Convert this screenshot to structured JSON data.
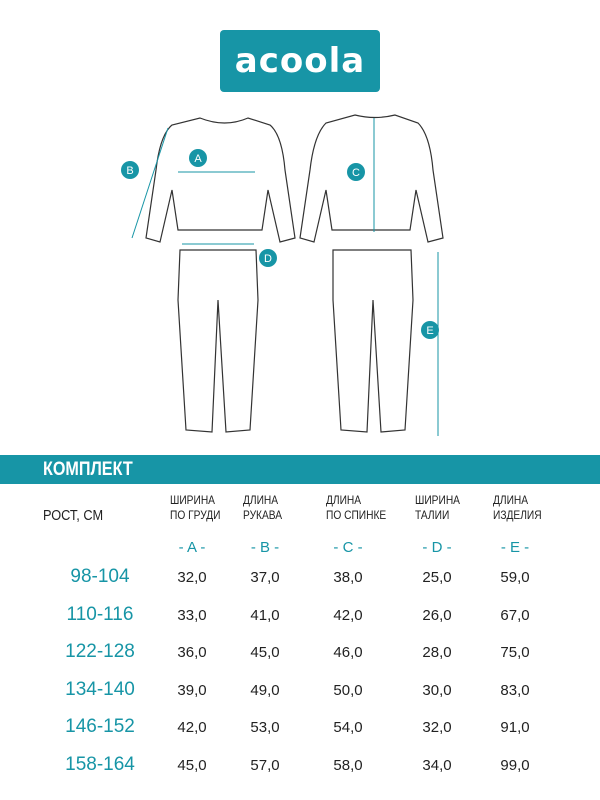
{
  "brand": {
    "logo_text": "acoola",
    "color": "#1795a6"
  },
  "diagram": {
    "labels": [
      "A",
      "B",
      "C",
      "D",
      "E"
    ]
  },
  "section_title": "КОМПЛЕКТ",
  "table": {
    "row_header": "РОСТ, СМ",
    "columns": [
      {
        "line1": "ШИРИНА",
        "line2": "ПО ГРУДИ",
        "letter": "- A -"
      },
      {
        "line1": "ДЛИНА",
        "line2": "РУКАВА",
        "letter": "- B -"
      },
      {
        "line1": "ДЛИНА",
        "line2": "ПО СПИНКЕ",
        "letter": "- C -"
      },
      {
        "line1": "ШИРИНА",
        "line2": "ТАЛИИ",
        "letter": "- D -"
      },
      {
        "line1": "ДЛИНА",
        "line2": "ИЗДЕЛИЯ",
        "letter": "- E -"
      }
    ],
    "rows": [
      {
        "size": "98-104",
        "values": [
          "32,0",
          "37,0",
          "38,0",
          "25,0",
          "59,0"
        ]
      },
      {
        "size": "110-116",
        "values": [
          "33,0",
          "41,0",
          "42,0",
          "26,0",
          "67,0"
        ]
      },
      {
        "size": "122-128",
        "values": [
          "36,0",
          "45,0",
          "46,0",
          "28,0",
          "75,0"
        ]
      },
      {
        "size": "134-140",
        "values": [
          "39,0",
          "49,0",
          "50,0",
          "30,0",
          "83,0"
        ]
      },
      {
        "size": "146-152",
        "values": [
          "42,0",
          "53,0",
          "54,0",
          "32,0",
          "91,0"
        ]
      },
      {
        "size": "158-164",
        "values": [
          "45,0",
          "57,0",
          "58,0",
          "34,0",
          "99,0"
        ]
      }
    ]
  }
}
